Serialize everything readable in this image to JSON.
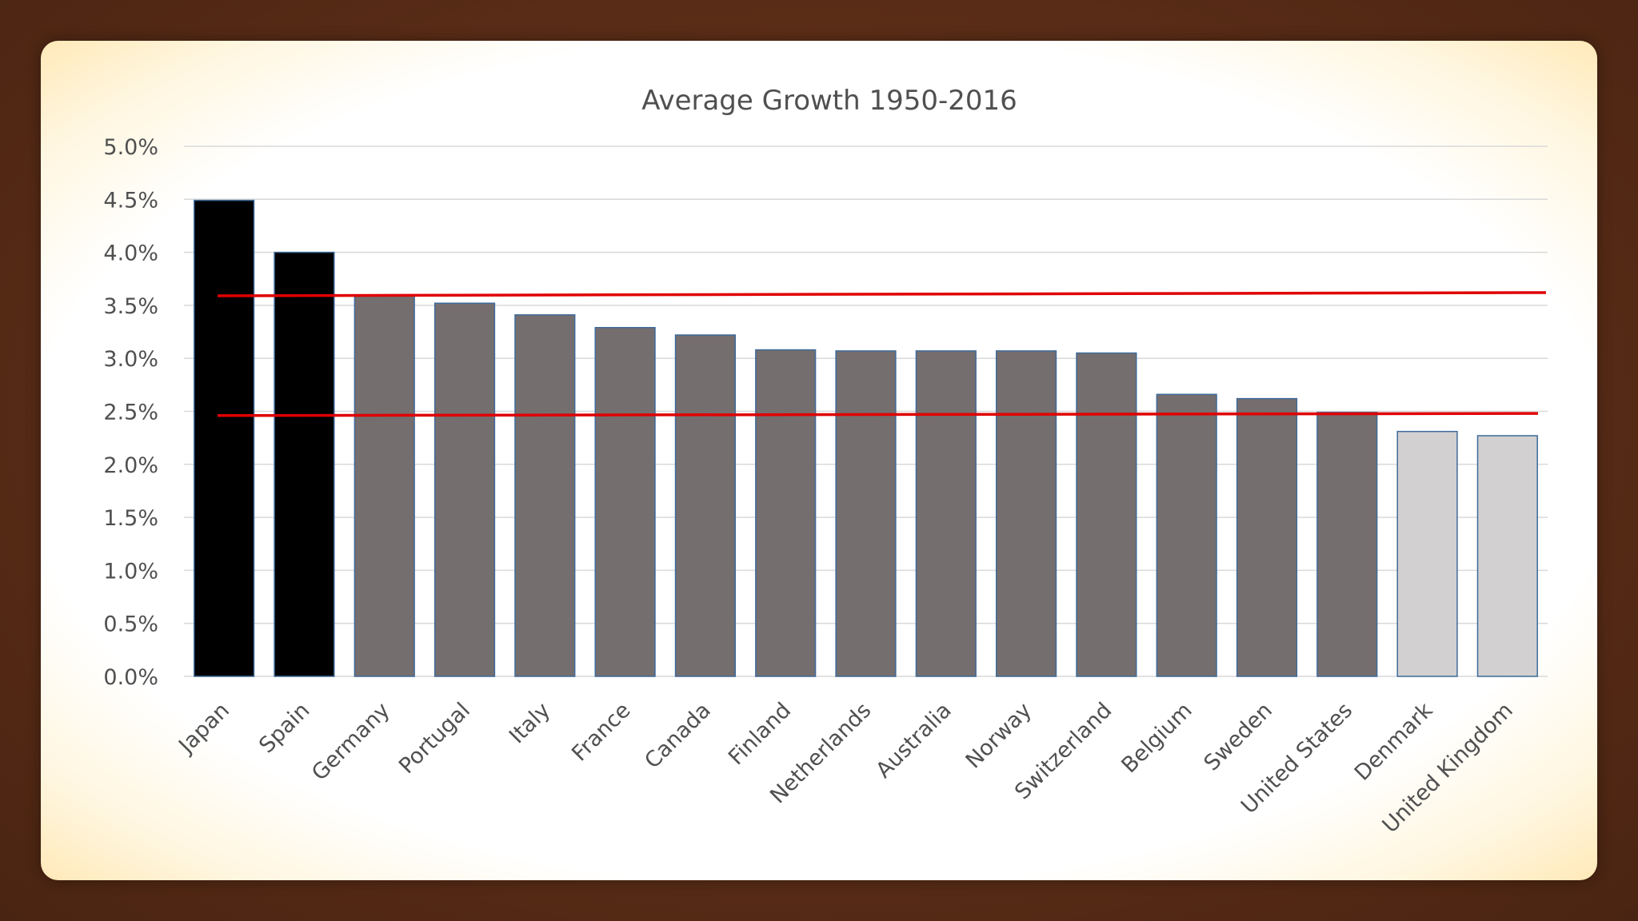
{
  "chart_data": {
    "type": "bar",
    "title": "Average Growth 1950-2016",
    "xlabel": "",
    "ylabel": "",
    "ylim": [
      0,
      5
    ],
    "y_ticks": [
      "0.0%",
      "0.5%",
      "1.0%",
      "1.5%",
      "2.0%",
      "2.5%",
      "3.0%",
      "3.5%",
      "4.0%",
      "4.5%",
      "5.0%"
    ],
    "grid": true,
    "legend": "none",
    "categories": [
      "Japan",
      "Spain",
      "Germany",
      "Portugal",
      "Italy",
      "France",
      "Canada",
      "Finland",
      "Netherlands",
      "Australia",
      "Norway",
      "Switzerland",
      "Belgium",
      "Sweden",
      "United States",
      "Denmark",
      "United Kingdom"
    ],
    "values": [
      4.49,
      4.0,
      3.59,
      3.52,
      3.41,
      3.29,
      3.22,
      3.08,
      3.07,
      3.07,
      3.07,
      3.05,
      2.66,
      2.62,
      2.49,
      2.31,
      2.27
    ],
    "bar_colors": [
      "#000000",
      "#000000",
      "#756e6e",
      "#756e6e",
      "#756e6e",
      "#756e6e",
      "#756e6e",
      "#756e6e",
      "#756e6e",
      "#756e6e",
      "#756e6e",
      "#756e6e",
      "#756e6e",
      "#756e6e",
      "#756e6e",
      "#d2d0d0",
      "#d2d0d0"
    ],
    "reference_lines": [
      {
        "y_start": 3.59,
        "y_end": 3.62,
        "color": "#e00000"
      },
      {
        "y_start": 2.46,
        "y_end": 2.48,
        "color": "#e00000"
      }
    ]
  }
}
